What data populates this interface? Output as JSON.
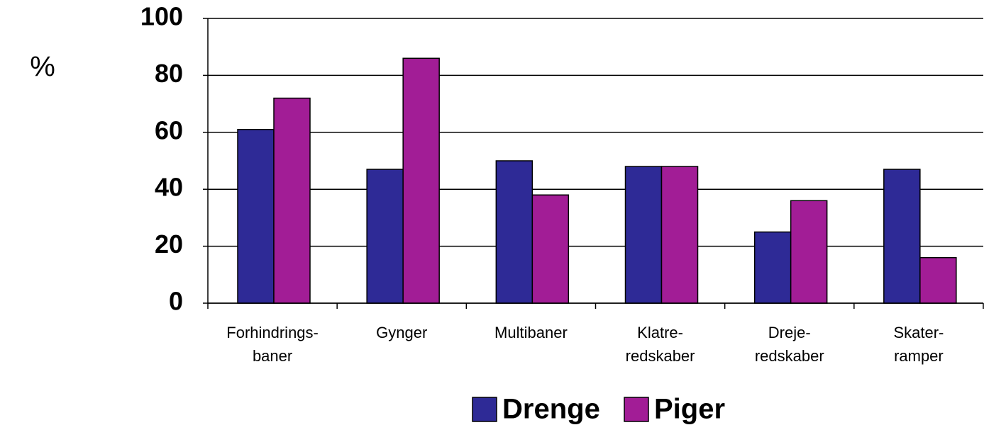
{
  "chart_data": {
    "type": "bar",
    "y_label": "%",
    "categories": [
      "Forhindrings-\nbaner",
      "Gynger",
      "Multibaner",
      "Klatre-\nredskaber",
      "Dreje-\nredskaber",
      "Skater-\nramper"
    ],
    "series": [
      {
        "name": "Drenge",
        "color": "#2e2a96",
        "values": [
          61,
          47,
          50,
          48,
          25,
          47
        ]
      },
      {
        "name": "Piger",
        "color": "#a21d96",
        "values": [
          72,
          86,
          38,
          48,
          36,
          16
        ]
      }
    ],
    "ylim": [
      0,
      100
    ],
    "yticks": [
      0,
      20,
      40,
      60,
      80,
      100
    ],
    "grid": true,
    "legend": "bottom"
  }
}
